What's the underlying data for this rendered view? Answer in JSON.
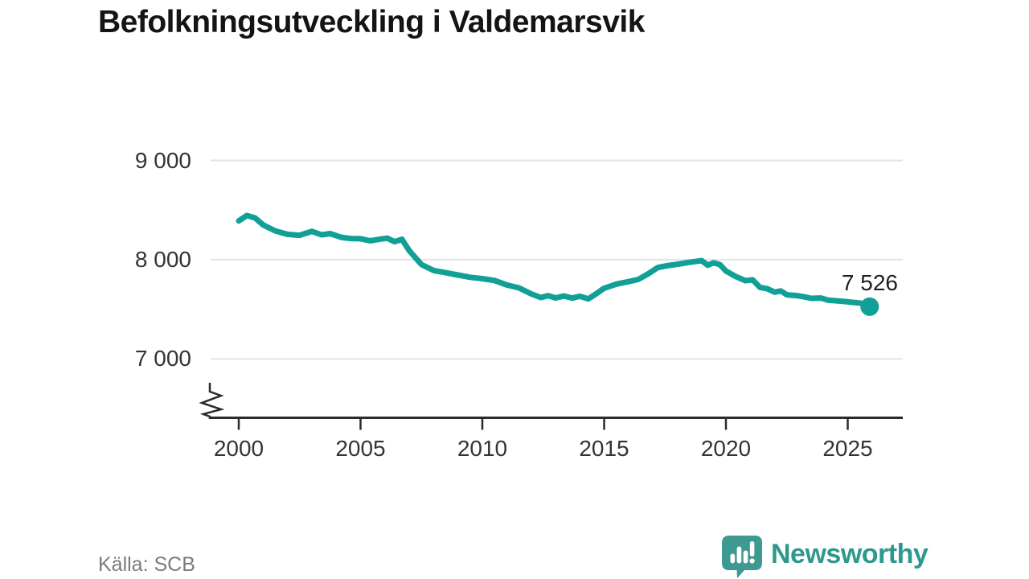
{
  "header": {
    "title": "Befolkningsutveckling i Valdemarsvik"
  },
  "chart_data": {
    "type": "line",
    "title": "Befolkningsutveckling i Valdemarsvik",
    "xlabel": "",
    "ylabel": "",
    "x_ticks": [
      "2000",
      "2005",
      "2010",
      "2015",
      "2020",
      "2025"
    ],
    "x_tick_years": [
      2000,
      2005,
      2010,
      2015,
      2020,
      2025
    ],
    "y_ticks": [
      "9 000",
      "8 000",
      "7 000"
    ],
    "y_tick_values": [
      9000,
      8000,
      7000
    ],
    "ylim": [
      7000,
      9000
    ],
    "xlim": [
      2000,
      2026
    ],
    "y_axis_break": true,
    "grid": "horizontal",
    "legend": "none",
    "line_color": "#10a095",
    "end_label": "7 526",
    "end_point": {
      "year": 2025.9,
      "value": 7526
    },
    "series": [
      {
        "name": "Befolkning",
        "points": [
          [
            2000.0,
            8390
          ],
          [
            2000.33,
            8445
          ],
          [
            2000.67,
            8420
          ],
          [
            2001.0,
            8350
          ],
          [
            2001.5,
            8290
          ],
          [
            2002.0,
            8255
          ],
          [
            2002.5,
            8245
          ],
          [
            2003.0,
            8285
          ],
          [
            2003.4,
            8250
          ],
          [
            2003.75,
            8262
          ],
          [
            2004.2,
            8225
          ],
          [
            2004.6,
            8213
          ],
          [
            2005.0,
            8210
          ],
          [
            2005.4,
            8190
          ],
          [
            2005.8,
            8206
          ],
          [
            2006.1,
            8216
          ],
          [
            2006.4,
            8180
          ],
          [
            2006.7,
            8205
          ],
          [
            2007.0,
            8090
          ],
          [
            2007.5,
            7950
          ],
          [
            2008.0,
            7890
          ],
          [
            2008.5,
            7868
          ],
          [
            2009.0,
            7845
          ],
          [
            2009.5,
            7822
          ],
          [
            2010.0,
            7808
          ],
          [
            2010.5,
            7790
          ],
          [
            2011.0,
            7745
          ],
          [
            2011.5,
            7715
          ],
          [
            2012.0,
            7655
          ],
          [
            2012.4,
            7618
          ],
          [
            2012.7,
            7636
          ],
          [
            2013.0,
            7614
          ],
          [
            2013.35,
            7633
          ],
          [
            2013.7,
            7612
          ],
          [
            2014.0,
            7631
          ],
          [
            2014.35,
            7604
          ],
          [
            2014.7,
            7660
          ],
          [
            2015.0,
            7712
          ],
          [
            2015.5,
            7753
          ],
          [
            2016.0,
            7778
          ],
          [
            2016.4,
            7800
          ],
          [
            2016.8,
            7855
          ],
          [
            2017.2,
            7920
          ],
          [
            2017.6,
            7940
          ],
          [
            2018.0,
            7953
          ],
          [
            2018.5,
            7973
          ],
          [
            2019.0,
            7990
          ],
          [
            2019.25,
            7944
          ],
          [
            2019.5,
            7968
          ],
          [
            2019.75,
            7950
          ],
          [
            2020.0,
            7885
          ],
          [
            2020.4,
            7830
          ],
          [
            2020.8,
            7788
          ],
          [
            2021.1,
            7796
          ],
          [
            2021.4,
            7720
          ],
          [
            2021.7,
            7706
          ],
          [
            2022.0,
            7672
          ],
          [
            2022.25,
            7684
          ],
          [
            2022.5,
            7645
          ],
          [
            2022.9,
            7637
          ],
          [
            2023.2,
            7625
          ],
          [
            2023.5,
            7610
          ],
          [
            2023.9,
            7613
          ],
          [
            2024.2,
            7591
          ],
          [
            2024.5,
            7585
          ],
          [
            2024.9,
            7577
          ],
          [
            2025.2,
            7569
          ],
          [
            2025.5,
            7563
          ],
          [
            2025.9,
            7526
          ]
        ]
      }
    ]
  },
  "footer": {
    "source": "Källa: SCB",
    "brand": "Newsworthy"
  },
  "colors": {
    "line": "#10a095",
    "axis": "#2b2b2b",
    "grid": "#e3e3e3",
    "logo_bubble": "#3e9a91",
    "logo_text": "#2e988c"
  }
}
